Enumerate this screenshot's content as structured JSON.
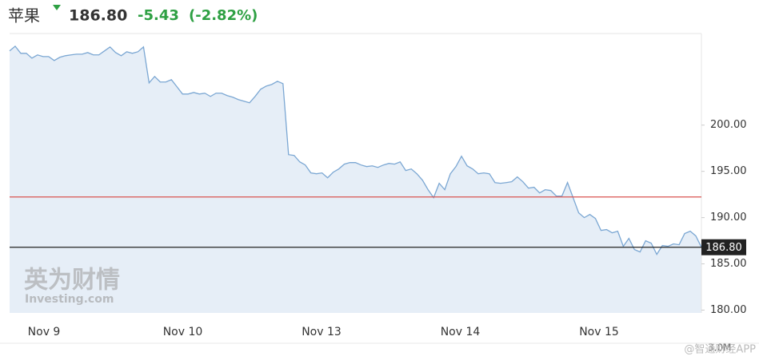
{
  "header": {
    "name": "苹果",
    "price": "186.80",
    "change": "-5.43",
    "change_percent": "(-2.82%)"
  },
  "chart_data": {
    "type": "area",
    "color": "#7ba7d3",
    "fill": "#e6eef7",
    "x_labels": [
      "Nov 9",
      "Nov 10",
      "Nov 13",
      "Nov 14",
      "Nov 15"
    ],
    "values": [
      208.02,
      208.53,
      207.76,
      207.76,
      207.24,
      207.59,
      207.41,
      207.41,
      206.98,
      207.33,
      207.5,
      207.59,
      207.67,
      207.67,
      207.84,
      207.59,
      207.59,
      208.02,
      208.45,
      207.84,
      207.5,
      207.93,
      207.76,
      207.93,
      208.45,
      204.57,
      205.26,
      204.66,
      204.66,
      204.91,
      204.14,
      203.36,
      203.36,
      203.53,
      203.36,
      203.45,
      203.1,
      203.45,
      203.45,
      203.19,
      203.02,
      202.76,
      202.59,
      202.41,
      203.1,
      203.88,
      204.22,
      204.4,
      204.74,
      204.48,
      196.81,
      196.72,
      196.03,
      195.69,
      194.83,
      194.74,
      194.83,
      194.31,
      194.91,
      195.26,
      195.78,
      195.95,
      195.95,
      195.69,
      195.52,
      195.6,
      195.43,
      195.69,
      195.86,
      195.78,
      196.03,
      195.09,
      195.26,
      194.74,
      194.05,
      193.02,
      192.16,
      193.71,
      193.02,
      194.74,
      195.52,
      196.64,
      195.6,
      195.26,
      194.74,
      194.83,
      194.74,
      193.79,
      193.71,
      193.79,
      193.88,
      194.4,
      193.88,
      193.19,
      193.28,
      192.67,
      193.02,
      192.93,
      192.33,
      192.33,
      193.79,
      192.16,
      190.52,
      190.0,
      190.34,
      189.91,
      188.62,
      188.71,
      188.36,
      188.53,
      186.9,
      187.76,
      186.55,
      186.29,
      187.5,
      187.24,
      186.03,
      186.98,
      186.9,
      187.16,
      187.07,
      188.28,
      188.53,
      188.02,
      186.8
    ],
    "ylim": [
      179.7,
      209.9
    ],
    "yticks": [
      {
        "value": 180,
        "label": "180.00"
      },
      {
        "value": 185,
        "label": "185.00"
      },
      {
        "value": 190,
        "label": "190.00"
      },
      {
        "value": 195,
        "label": "195.00"
      },
      {
        "value": 200,
        "label": "200.00"
      }
    ],
    "reference_lines": [
      {
        "value": 192.23,
        "color": "#d9534f"
      },
      {
        "value": 186.8,
        "label": "186.80",
        "color": "#222222"
      }
    ],
    "volume_label": "3.0M",
    "watermark": [
      "英为财情",
      "Investing.com"
    ],
    "source": "@智通财经APP"
  }
}
